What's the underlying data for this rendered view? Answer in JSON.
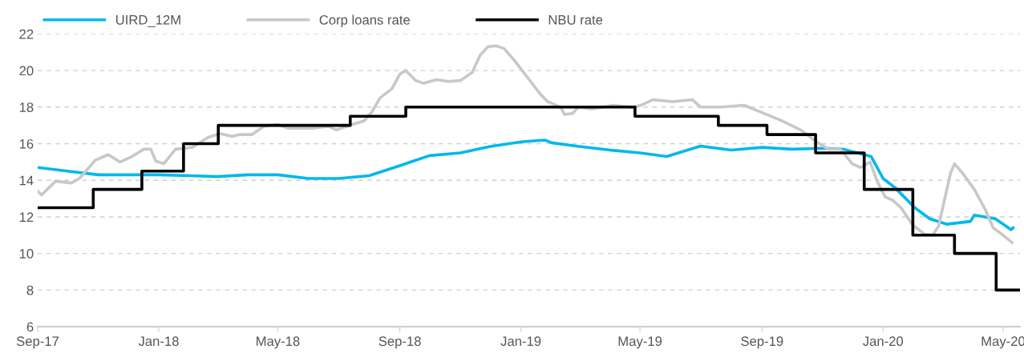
{
  "chart_data": {
    "type": "line",
    "series": [
      {
        "name": "UIRD_12M",
        "color": "#00b8ec",
        "x": [
          "2017-09-01",
          "2017-10-01",
          "2017-11-01",
          "2017-12-01",
          "2018-01-01",
          "2018-02-01",
          "2018-03-01",
          "2018-04-01",
          "2018-05-01",
          "2018-06-01",
          "2018-07-01",
          "2018-08-01",
          "2018-09-01",
          "2018-10-01",
          "2018-11-01",
          "2018-12-01",
          "2019-01-01",
          "2019-01-25",
          "2019-02-01",
          "2019-03-01",
          "2019-04-01",
          "2019-05-01",
          "2019-05-28",
          "2019-07-01",
          "2019-08-01",
          "2019-09-01",
          "2019-10-01",
          "2019-11-01",
          "2019-11-22",
          "2019-12-20",
          "2020-01-01",
          "2020-01-13",
          "2020-02-02",
          "2020-02-17",
          "2020-03-05",
          "2020-03-29",
          "2020-04-02",
          "2020-04-23",
          "2020-05-01",
          "2020-05-09",
          "2020-05-11"
        ],
        "values": [
          14.7,
          14.5,
          14.3,
          14.3,
          14.3,
          14.25,
          14.2,
          14.3,
          14.3,
          14.1,
          14.1,
          14.25,
          14.8,
          15.35,
          15.5,
          15.85,
          16.1,
          16.2,
          16.05,
          15.85,
          15.65,
          15.5,
          15.3,
          15.87,
          15.65,
          15.8,
          15.7,
          15.75,
          15.7,
          15.3,
          14.1,
          13.6,
          12.5,
          11.9,
          11.6,
          11.75,
          12.1,
          11.9,
          11.6,
          11.3,
          11.4
        ]
      },
      {
        "name": "Corp loans rate",
        "color": "#c8c8c8",
        "x": [
          "2017-09-01",
          "2017-09-05",
          "2017-09-19",
          "2017-10-05",
          "2017-10-13",
          "2017-10-29",
          "2017-11-11",
          "2017-11-23",
          "2017-12-05",
          "2017-12-17",
          "2017-12-24",
          "2017-12-29",
          "2018-01-06",
          "2018-01-18",
          "2018-02-04",
          "2018-02-20",
          "2018-03-04",
          "2018-03-16",
          "2018-03-24",
          "2018-04-05",
          "2018-04-17",
          "2018-05-01",
          "2018-05-11",
          "2018-06-05",
          "2018-06-21",
          "2018-06-29",
          "2018-07-15",
          "2018-07-27",
          "2018-08-04",
          "2018-08-12",
          "2018-08-24",
          "2018-09-01",
          "2018-09-07",
          "2018-09-17",
          "2018-09-25",
          "2018-10-08",
          "2018-10-20",
          "2018-11-01",
          "2018-11-13",
          "2018-11-21",
          "2018-11-29",
          "2018-12-07",
          "2018-12-15",
          "2018-12-27",
          "2019-01-08",
          "2019-01-20",
          "2019-01-28",
          "2019-02-10",
          "2019-02-14",
          "2019-02-22",
          "2019-02-28",
          "2019-03-14",
          "2019-04-04",
          "2019-04-24",
          "2019-05-02",
          "2019-05-14",
          "2019-06-03",
          "2019-06-23",
          "2019-07-01",
          "2019-07-21",
          "2019-08-14",
          "2019-09-01",
          "2019-09-21",
          "2019-10-10",
          "2019-10-26",
          "2019-11-07",
          "2019-11-19",
          "2019-12-01",
          "2019-12-09",
          "2019-12-19",
          "2019-12-26",
          "2020-01-03",
          "2020-01-11",
          "2020-01-19",
          "2020-01-31",
          "2020-02-12",
          "2020-02-20",
          "2020-02-26",
          "2020-03-03",
          "2020-03-09",
          "2020-03-13",
          "2020-03-21",
          "2020-04-02",
          "2020-04-13",
          "2020-04-21",
          "2020-05-01",
          "2020-05-10"
        ],
        "values": [
          13.4,
          13.2,
          13.95,
          13.85,
          14.1,
          15.1,
          15.4,
          15.0,
          15.3,
          15.7,
          15.7,
          15.05,
          14.9,
          15.7,
          15.8,
          16.35,
          16.55,
          16.4,
          16.5,
          16.5,
          16.95,
          17.05,
          16.85,
          16.85,
          16.95,
          16.75,
          17.05,
          17.25,
          17.75,
          18.5,
          19.0,
          19.8,
          20.0,
          19.45,
          19.3,
          19.5,
          19.4,
          19.45,
          19.9,
          20.85,
          21.3,
          21.35,
          21.2,
          20.45,
          19.6,
          18.75,
          18.3,
          18.0,
          17.6,
          17.65,
          18.0,
          17.9,
          18.1,
          18.0,
          18.1,
          18.4,
          18.3,
          18.4,
          18.0,
          18.0,
          18.1,
          17.7,
          17.25,
          16.75,
          16.1,
          15.7,
          15.7,
          14.9,
          14.7,
          15.0,
          13.95,
          13.1,
          12.9,
          12.5,
          11.55,
          11.05,
          11.0,
          11.5,
          12.95,
          14.4,
          14.9,
          14.4,
          13.5,
          12.4,
          11.4,
          11.0,
          10.6
        ]
      },
      {
        "name": "NBU rate",
        "color": "#000000",
        "type": "step",
        "x": [
          "2017-09-01",
          "2017-10-27",
          "2017-12-15",
          "2018-01-26",
          "2018-03-02",
          "2018-07-13",
          "2018-09-07",
          "2019-04-26",
          "2019-07-19",
          "2019-09-06",
          "2019-10-25",
          "2019-12-13",
          "2020-01-31",
          "2020-03-13",
          "2020-04-24",
          "2020-05-17"
        ],
        "values": [
          12.5,
          13.5,
          14.5,
          16,
          17,
          17.5,
          18,
          17.5,
          17,
          16.5,
          15.5,
          13.5,
          11,
          10,
          8,
          8
        ]
      }
    ],
    "xlim": [
      "2017-09-01",
      "2020-05-18"
    ],
    "xticks": [
      {
        "value": "2017-09-01",
        "label": "Sep-17"
      },
      {
        "value": "2018-01-01",
        "label": "Jan-18"
      },
      {
        "value": "2018-05-01",
        "label": "May-18"
      },
      {
        "value": "2018-09-01",
        "label": "Sep-18"
      },
      {
        "value": "2019-01-01",
        "label": "Jan-19"
      },
      {
        "value": "2019-05-01",
        "label": "May-19"
      },
      {
        "value": "2019-09-01",
        "label": "Sep-19"
      },
      {
        "value": "2020-01-01",
        "label": "Jan-20"
      },
      {
        "value": "2020-05-01",
        "label": "May-20"
      }
    ],
    "ylim": [
      6,
      22
    ],
    "yticks": [
      6,
      8,
      10,
      12,
      14,
      16,
      18,
      20,
      22
    ],
    "grid": "y",
    "legend": "top left",
    "marker": "none",
    "line_style": "solid"
  }
}
